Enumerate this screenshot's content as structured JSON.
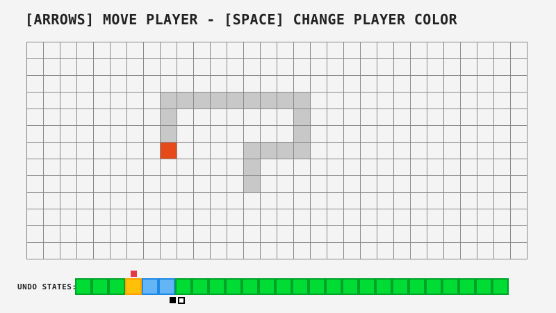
{
  "title": "[ARROWS] MOVE PLAYER - [SPACE] CHANGE PLAYER COLOR",
  "colors": {
    "background": "#F4F4F4",
    "text": "#222222",
    "grid_line": "#888888",
    "trail": "#C8C8C8",
    "player": "#E64A19",
    "undo_green_fill": "#00DC34",
    "undo_green_border": "#00A228",
    "undo_yellow_fill": "#FFC107",
    "undo_yellow_border": "#FFA000",
    "undo_blue_fill": "#64B5F6",
    "undo_blue_border": "#1E88E5",
    "marker_red": "#E53945",
    "swatch_black": "#000000",
    "swatch_white": "#FFFFFF"
  },
  "grid": {
    "cols": 30,
    "rows": 13,
    "cell_size": 24,
    "trail_cells": [
      [
        8,
        3
      ],
      [
        9,
        3
      ],
      [
        10,
        3
      ],
      [
        11,
        3
      ],
      [
        12,
        3
      ],
      [
        13,
        3
      ],
      [
        14,
        3
      ],
      [
        15,
        3
      ],
      [
        16,
        3
      ],
      [
        8,
        4
      ],
      [
        8,
        5
      ],
      [
        16,
        4
      ],
      [
        16,
        5
      ],
      [
        16,
        6
      ],
      [
        13,
        6
      ],
      [
        14,
        6
      ],
      [
        15,
        6
      ],
      [
        13,
        7
      ],
      [
        13,
        8
      ]
    ],
    "player_cell": [
      8,
      6
    ]
  },
  "undo_bar": {
    "label": "UNDO STATES:",
    "marker_index": 3,
    "states": [
      "green",
      "green",
      "green",
      "yellow",
      "blue",
      "blue",
      "green",
      "green",
      "green",
      "green",
      "green",
      "green",
      "green",
      "green",
      "green",
      "green",
      "green",
      "green",
      "green",
      "green",
      "green",
      "green",
      "green",
      "green",
      "green",
      "green"
    ],
    "swatches": [
      "black",
      "white"
    ]
  }
}
